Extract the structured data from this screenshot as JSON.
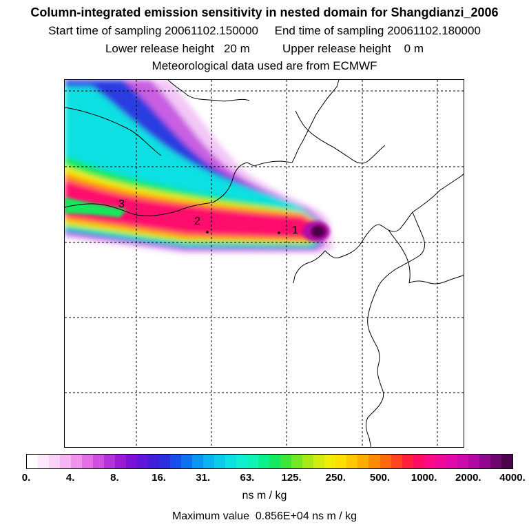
{
  "header": {
    "title": "Column-integrated emission sensitivity in nested domain for Shangdianzi_2006",
    "line2": "Start time of sampling 20061102.150000     End time of sampling 20061102.180000",
    "line3": "Lower release height   20 m          Upper release height    0 m",
    "line4": "Meteorological data used are from ECMWF"
  },
  "map": {
    "labels": [
      "1",
      "2",
      "3"
    ]
  },
  "legend": {
    "ticks": [
      "0.",
      "4.",
      "8.",
      "16.",
      "31.",
      "63.",
      "125.",
      "250.",
      "500.",
      "1000.",
      "2000.",
      "4000."
    ],
    "unit": "ns m / kg",
    "max_value": "Maximum value  0.856E+04 ns m / kg",
    "colors": [
      "#ffffff",
      "#fde8fb",
      "#fbd2f8",
      "#f7b4f3",
      "#ef94ec",
      "#e26fe6",
      "#cf4fe0",
      "#b533db",
      "#9a1bd6",
      "#7d10d6",
      "#5f16d8",
      "#411ed8",
      "#2c2fe0",
      "#1650e8",
      "#0b73ee",
      "#0896f2",
      "#09b4f0",
      "#0bcbea",
      "#0de0e2",
      "#0ff0d2",
      "#0ef4b4",
      "#0cf08c",
      "#14ea5e",
      "#3ee63a",
      "#74e626",
      "#a8ea18",
      "#d2ec10",
      "#f2ec08",
      "#fde000",
      "#ffc800",
      "#ffac00",
      "#ff8c00",
      "#ff6a0c",
      "#ff441e",
      "#ff1e3c",
      "#ff0c64",
      "#fb0a86",
      "#f00a9a",
      "#e20aa8",
      "#cc0aac",
      "#b20aa4",
      "#92088e",
      "#700670",
      "#4c044c"
    ]
  }
}
